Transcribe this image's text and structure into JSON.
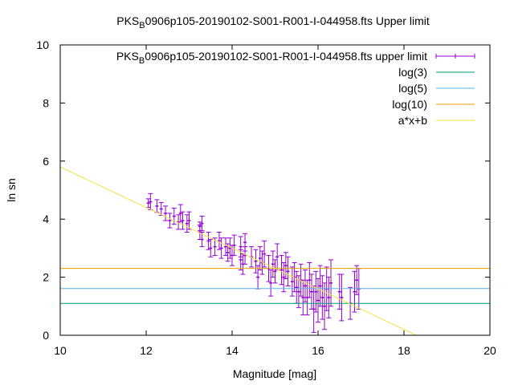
{
  "chart_data": {
    "type": "scatter",
    "title": {
      "prefix": "PKS",
      "sub": "B",
      "suffix": "0906p105-20190102-S001-R001-I-044958.fts Upper limit"
    },
    "xlabel": "Magnitude [mag]",
    "ylabel": "ln sn",
    "xlim": [
      10,
      20
    ],
    "ylim": [
      0,
      10
    ],
    "xticks": [
      "10",
      "12",
      "14",
      "16",
      "18",
      "20"
    ],
    "yticks": [
      "0",
      "2",
      "4",
      "6",
      "8",
      "10"
    ],
    "grid": false,
    "legend_position": "top-right",
    "series": [
      {
        "name": {
          "prefix": "PKS",
          "sub": "B",
          "suffix": "0906p105-20190102-S001-R001-I-044958.fts upper limit"
        },
        "kind": "errorbars",
        "color": "#9400d3",
        "points": [
          {
            "x": 12.05,
            "y": 4.55,
            "e": 0.15
          },
          {
            "x": 12.1,
            "y": 4.6,
            "e": 0.28
          },
          {
            "x": 12.25,
            "y": 4.45,
            "e": 0.22
          },
          {
            "x": 12.35,
            "y": 4.35,
            "e": 0.22
          },
          {
            "x": 12.45,
            "y": 4.2,
            "e": 0.25
          },
          {
            "x": 12.55,
            "y": 3.95,
            "e": 0.25
          },
          {
            "x": 12.65,
            "y": 4.1,
            "e": 0.28
          },
          {
            "x": 12.75,
            "y": 3.9,
            "e": 0.25
          },
          {
            "x": 12.8,
            "y": 4.2,
            "e": 0.3
          },
          {
            "x": 12.85,
            "y": 3.95,
            "e": 0.3
          },
          {
            "x": 12.95,
            "y": 3.85,
            "e": 0.3
          },
          {
            "x": 13.0,
            "y": 3.95,
            "e": 0.3
          },
          {
            "x": 13.25,
            "y": 3.75,
            "e": 0.15
          },
          {
            "x": 13.25,
            "y": 3.55,
            "e": 0.25
          },
          {
            "x": 13.3,
            "y": 3.85,
            "e": 0.25
          },
          {
            "x": 13.3,
            "y": 3.3,
            "e": 0.25
          },
          {
            "x": 13.45,
            "y": 3.25,
            "e": 0.3
          },
          {
            "x": 13.5,
            "y": 3.0,
            "e": 0.3
          },
          {
            "x": 13.6,
            "y": 3.05,
            "e": 0.3
          },
          {
            "x": 13.7,
            "y": 3.25,
            "e": 0.3
          },
          {
            "x": 13.75,
            "y": 3.0,
            "e": 0.35
          },
          {
            "x": 13.85,
            "y": 3.05,
            "e": 0.3
          },
          {
            "x": 13.9,
            "y": 2.85,
            "e": 0.3
          },
          {
            "x": 13.95,
            "y": 3.0,
            "e": 0.35
          },
          {
            "x": 14.0,
            "y": 2.75,
            "e": 0.35
          },
          {
            "x": 14.05,
            "y": 3.1,
            "e": 0.35
          },
          {
            "x": 14.2,
            "y": 2.6,
            "e": 0.35
          },
          {
            "x": 14.2,
            "y": 3.05,
            "e": 0.35
          },
          {
            "x": 14.25,
            "y": 2.45,
            "e": 0.35
          },
          {
            "x": 14.3,
            "y": 2.75,
            "e": 0.3
          },
          {
            "x": 14.3,
            "y": 3.2,
            "e": 0.3
          },
          {
            "x": 14.45,
            "y": 2.7,
            "e": 0.35
          },
          {
            "x": 14.55,
            "y": 2.55,
            "e": 0.4
          },
          {
            "x": 14.6,
            "y": 2.0,
            "e": 0.4
          },
          {
            "x": 14.65,
            "y": 2.65,
            "e": 0.4
          },
          {
            "x": 14.7,
            "y": 2.5,
            "e": 0.4
          },
          {
            "x": 14.75,
            "y": 2.8,
            "e": 0.45
          },
          {
            "x": 14.85,
            "y": 2.3,
            "e": 0.45
          },
          {
            "x": 14.9,
            "y": 1.8,
            "e": 0.45
          },
          {
            "x": 14.95,
            "y": 2.45,
            "e": 0.45
          },
          {
            "x": 15.0,
            "y": 2.2,
            "e": 0.4
          },
          {
            "x": 15.05,
            "y": 2.7,
            "e": 0.45
          },
          {
            "x": 15.15,
            "y": 2.25,
            "e": 0.5
          },
          {
            "x": 15.2,
            "y": 2.0,
            "e": 0.5
          },
          {
            "x": 15.25,
            "y": 2.4,
            "e": 0.45
          },
          {
            "x": 15.3,
            "y": 2.2,
            "e": 0.5
          },
          {
            "x": 15.4,
            "y": 1.85,
            "e": 0.5
          },
          {
            "x": 15.45,
            "y": 2.0,
            "e": 0.5
          },
          {
            "x": 15.5,
            "y": 1.65,
            "e": 0.55
          },
          {
            "x": 15.55,
            "y": 1.5,
            "e": 0.55
          },
          {
            "x": 15.6,
            "y": 1.9,
            "e": 0.55
          },
          {
            "x": 15.65,
            "y": 1.3,
            "e": 0.6
          },
          {
            "x": 15.7,
            "y": 1.7,
            "e": 0.55
          },
          {
            "x": 15.75,
            "y": 1.3,
            "e": 0.6
          },
          {
            "x": 15.8,
            "y": 1.9,
            "e": 0.6
          },
          {
            "x": 15.85,
            "y": 1.5,
            "e": 0.6
          },
          {
            "x": 15.9,
            "y": 0.9,
            "e": 0.8
          },
          {
            "x": 15.95,
            "y": 1.5,
            "e": 0.7
          },
          {
            "x": 16.0,
            "y": 1.2,
            "e": 0.75
          },
          {
            "x": 16.05,
            "y": 1.7,
            "e": 0.7
          },
          {
            "x": 16.1,
            "y": 1.3,
            "e": 0.75
          },
          {
            "x": 16.15,
            "y": 1.0,
            "e": 0.8
          },
          {
            "x": 16.2,
            "y": 1.6,
            "e": 0.75
          },
          {
            "x": 16.25,
            "y": 1.3,
            "e": 0.7
          },
          {
            "x": 16.3,
            "y": 1.8,
            "e": 0.8
          },
          {
            "x": 16.5,
            "y": 1.5,
            "e": 0.6
          },
          {
            "x": 16.55,
            "y": 1.3,
            "e": 0.8
          },
          {
            "x": 16.75,
            "y": 1.1,
            "e": 0.55
          },
          {
            "x": 16.85,
            "y": 1.5,
            "e": 0.7
          },
          {
            "x": 16.9,
            "y": 1.9,
            "e": 0.5
          },
          {
            "x": 16.95,
            "y": 1.6,
            "e": 0.7
          }
        ]
      },
      {
        "name": "log(3)",
        "kind": "hline",
        "y": 1.0986,
        "color": "#009e73"
      },
      {
        "name": "log(5)",
        "kind": "hline",
        "y": 1.6094,
        "color": "#56b4e9"
      },
      {
        "name": "log(10)",
        "kind": "hline",
        "y": 2.3026,
        "color": "#e69f00"
      },
      {
        "name": "a*x+b",
        "kind": "line",
        "slope": -0.7,
        "intercept": 12.8,
        "color": "#f0e442"
      }
    ]
  }
}
